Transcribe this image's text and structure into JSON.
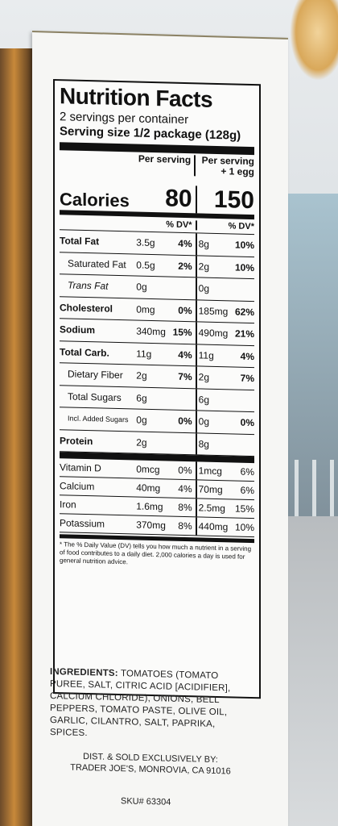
{
  "nutrition": {
    "title": "Nutrition Facts",
    "servings_per_container": "2 servings per container",
    "serving_size": "Serving size 1/2 package (128g)",
    "col_per_serving": "Per serving",
    "col_per_serving_egg_line1": "Per serving",
    "col_per_serving_egg_line2": "+ 1 egg",
    "calories_label": "Calories",
    "calories_1": "80",
    "calories_2": "150",
    "dv_header": "% DV*",
    "rows": [
      {
        "name": "Total Fat",
        "style": "bold",
        "amt1": "3.5g",
        "pct1": "4%",
        "amt2": "8g",
        "pct2": "10%"
      },
      {
        "name": "Saturated Fat",
        "style": "sub",
        "amt1": "0.5g",
        "pct1": "2%",
        "amt2": "2g",
        "pct2": "10%"
      },
      {
        "name": "Trans Fat",
        "style": "sub-italic",
        "amt1": "0g",
        "pct1": "",
        "amt2": "0g",
        "pct2": ""
      },
      {
        "name": "Cholesterol",
        "style": "bold",
        "amt1": "0mg",
        "pct1": "0%",
        "amt2": "185mg",
        "pct2": "62%"
      },
      {
        "name": "Sodium",
        "style": "bold",
        "amt1": "340mg",
        "pct1": "15%",
        "amt2": "490mg",
        "pct2": "21%"
      },
      {
        "name": "Total Carb.",
        "style": "bold",
        "amt1": "11g",
        "pct1": "4%",
        "amt2": "11g",
        "pct2": "4%"
      },
      {
        "name": "Dietary Fiber",
        "style": "sub",
        "amt1": "2g",
        "pct1": "7%",
        "amt2": "2g",
        "pct2": "7%"
      },
      {
        "name": "Total Sugars",
        "style": "sub",
        "amt1": "6g",
        "pct1": "",
        "amt2": "6g",
        "pct2": ""
      },
      {
        "name": "Incl. Added Sugars",
        "style": "sub-small",
        "amt1": "0g",
        "pct1": "0%",
        "amt2": "0g",
        "pct2": "0%"
      },
      {
        "name": "Protein",
        "style": "bold",
        "amt1": "2g",
        "pct1": "",
        "amt2": "8g",
        "pct2": ""
      }
    ],
    "vitamins": [
      {
        "name": "Vitamin D",
        "amt1": "0mcg",
        "pct1": "0%",
        "amt2": "1mcg",
        "pct2": "6%"
      },
      {
        "name": "Calcium",
        "amt1": "40mg",
        "pct1": "4%",
        "amt2": "70mg",
        "pct2": "6%"
      },
      {
        "name": "Iron",
        "amt1": "1.6mg",
        "pct1": "8%",
        "amt2": "2.5mg",
        "pct2": "15%"
      },
      {
        "name": "Potassium",
        "amt1": "370mg",
        "pct1": "8%",
        "amt2": "440mg",
        "pct2": "10%"
      }
    ],
    "footnote": "* The % Daily Value (DV) tells you how much a nutrient in a serving of food contributes to a daily diet. 2,000 calories a day is used for general nutrition advice."
  },
  "ingredients": {
    "label": "INGREDIENTS:",
    "text": "TOMATOES (TOMATO PUREE, SALT, CITRIC ACID [ACIDIFIER], CALCIUM CHLORIDE), ONIONS, BELL PEPPERS, TOMATO PASTE, OLIVE OIL, GARLIC, CILANTRO, SALT, PAPRIKA, SPICES."
  },
  "distribution": {
    "line1": "DIST. & SOLD EXCLUSIVELY BY:",
    "line2": "TRADER JOE'S, MONROVIA, CA 91016"
  },
  "sku": "SKU# 63304"
}
